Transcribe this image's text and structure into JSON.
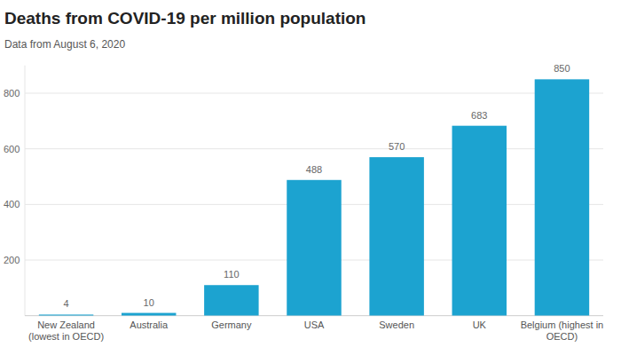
{
  "chart_data": {
    "type": "bar",
    "title": "Deaths from COVID-19 per million population",
    "subtitle": "Data from August 6, 2020",
    "categories": [
      "New Zealand (lowest in OECD)",
      "Australia",
      "Germany",
      "USA",
      "Sweden",
      "UK",
      "Belgium (highest in OECD)"
    ],
    "values": [
      4,
      10,
      110,
      488,
      570,
      683,
      850
    ],
    "color": "#1ca3d0",
    "ylim": [
      0,
      900
    ],
    "yticks": [
      200,
      400,
      600,
      800
    ],
    "grid": true,
    "data_labels": true
  }
}
